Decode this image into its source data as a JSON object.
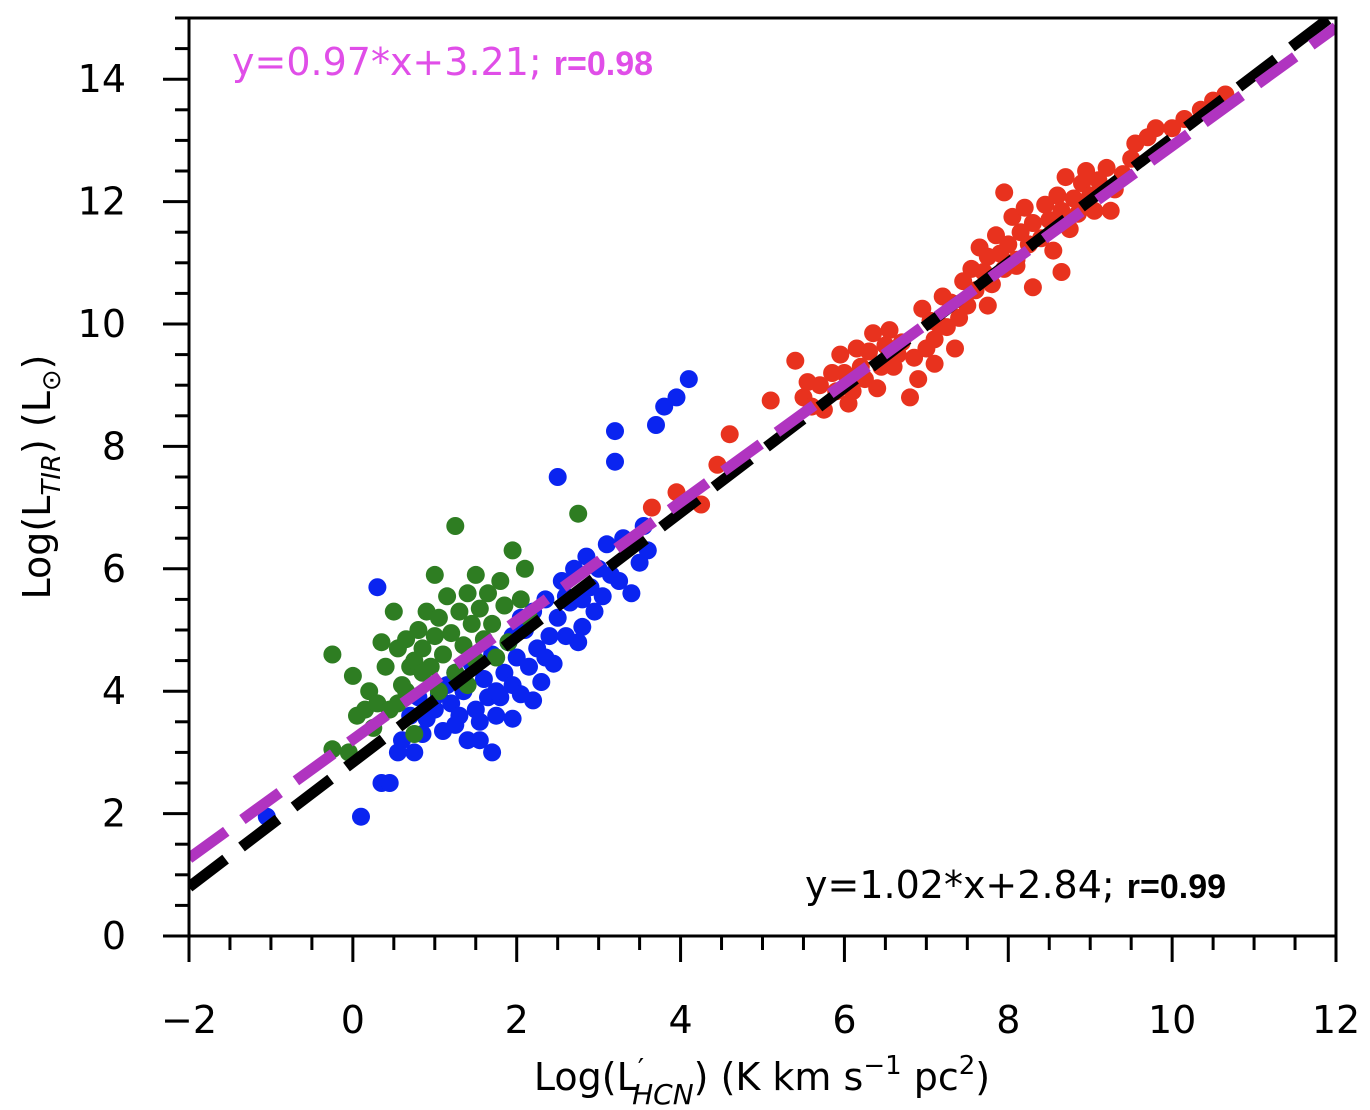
{
  "chart_data": {
    "type": "scatter",
    "xlabel": "Log(L′HCN) (K km s⁻¹ pc²)",
    "xlabel_parts": {
      "pre": "Log(L",
      "prime": "′",
      "sub": "HCN",
      "post": ") (K km s",
      "sup1": "−1",
      "mid": " pc",
      "sup2": "2",
      "end": ")"
    },
    "ylabel": "Log(L TIR) (L⊙)",
    "ylabel_parts": {
      "pre": "Log(L",
      "sub": "TIR",
      "post": ") (L",
      "sun": "⊙",
      "end": ")"
    },
    "xlim": [
      -2,
      12
    ],
    "ylim": [
      0,
      15
    ],
    "xticks": [
      -2,
      0,
      2,
      4,
      6,
      8,
      10,
      12
    ],
    "xtick_labels": [
      "−2",
      "0",
      "2",
      "4",
      "6",
      "8",
      "10",
      "12"
    ],
    "yticks": [
      0,
      2,
      4,
      6,
      8,
      10,
      12,
      14
    ],
    "ytick_labels": [
      "0",
      "2",
      "4",
      "6",
      "8",
      "10",
      "12",
      "14"
    ],
    "x_minor_step": 0.5,
    "y_minor_step": 0.5,
    "fits": [
      {
        "name": "black-fit",
        "slope": 1.02,
        "intercept": 2.84,
        "color": "#000000",
        "label_eq": "y=1.02*x+2.84; ",
        "label_r": "r=0.99",
        "label_color": "#000000",
        "label_r_color": "#000000"
      },
      {
        "name": "magenta-fit",
        "slope": 0.97,
        "intercept": 3.21,
        "color": "#b034c0",
        "label_eq": "y=0.97*x+3.21; ",
        "label_r": "r=0.98",
        "label_color": "#e04ee8",
        "label_r_color": "#e04ee8"
      }
    ],
    "series": [
      {
        "name": "red",
        "color": "#e8321e",
        "points": [
          [
            3.65,
            7.0
          ],
          [
            3.95,
            7.25
          ],
          [
            4.25,
            7.05
          ],
          [
            4.45,
            7.7
          ],
          [
            4.6,
            8.2
          ],
          [
            5.1,
            8.75
          ],
          [
            5.4,
            9.4
          ],
          [
            5.5,
            8.8
          ],
          [
            5.55,
            9.05
          ],
          [
            5.6,
            8.65
          ],
          [
            5.7,
            9.0
          ],
          [
            5.75,
            8.6
          ],
          [
            5.85,
            9.2
          ],
          [
            5.9,
            8.9
          ],
          [
            5.95,
            9.5
          ],
          [
            6.0,
            9.2
          ],
          [
            6.05,
            8.7
          ],
          [
            6.1,
            8.9
          ],
          [
            6.15,
            9.6
          ],
          [
            6.2,
            9.3
          ],
          [
            6.25,
            9.1
          ],
          [
            6.3,
            9.55
          ],
          [
            6.35,
            9.85
          ],
          [
            6.4,
            8.95
          ],
          [
            6.45,
            9.3
          ],
          [
            6.5,
            9.65
          ],
          [
            6.55,
            9.9
          ],
          [
            6.6,
            9.3
          ],
          [
            6.7,
            9.7
          ],
          [
            6.8,
            8.8
          ],
          [
            6.85,
            9.45
          ],
          [
            6.9,
            9.1
          ],
          [
            7.0,
            9.6
          ],
          [
            7.05,
            10.05
          ],
          [
            7.1,
            9.75
          ],
          [
            7.2,
            10.45
          ],
          [
            7.25,
            9.95
          ],
          [
            7.3,
            10.35
          ],
          [
            7.35,
            9.6
          ],
          [
            7.4,
            10.1
          ],
          [
            7.45,
            10.7
          ],
          [
            7.5,
            10.3
          ],
          [
            7.55,
            10.9
          ],
          [
            7.6,
            10.55
          ],
          [
            7.65,
            11.25
          ],
          [
            7.7,
            10.85
          ],
          [
            7.75,
            11.1
          ],
          [
            7.8,
            10.65
          ],
          [
            7.85,
            11.45
          ],
          [
            7.9,
            11.15
          ],
          [
            7.95,
            10.9
          ],
          [
            8.0,
            11.3
          ],
          [
            8.05,
            11.75
          ],
          [
            8.1,
            11.05
          ],
          [
            8.15,
            11.5
          ],
          [
            8.2,
            11.9
          ],
          [
            8.25,
            11.3
          ],
          [
            8.3,
            11.65
          ],
          [
            8.4,
            11.4
          ],
          [
            8.45,
            11.95
          ],
          [
            8.5,
            11.7
          ],
          [
            8.55,
            11.2
          ],
          [
            8.6,
            12.1
          ],
          [
            8.65,
            11.85
          ],
          [
            8.7,
            12.4
          ],
          [
            8.75,
            11.55
          ],
          [
            8.8,
            12.05
          ],
          [
            8.85,
            11.8
          ],
          [
            8.9,
            12.3
          ],
          [
            8.95,
            12.5
          ],
          [
            9.0,
            12.1
          ],
          [
            9.05,
            11.85
          ],
          [
            9.1,
            12.35
          ],
          [
            9.2,
            12.55
          ],
          [
            9.3,
            12.2
          ],
          [
            9.4,
            12.45
          ],
          [
            9.5,
            12.7
          ],
          [
            9.55,
            12.95
          ],
          [
            9.7,
            13.05
          ],
          [
            9.8,
            13.2
          ],
          [
            10.0,
            13.2
          ],
          [
            10.15,
            13.35
          ],
          [
            10.35,
            13.5
          ],
          [
            10.5,
            13.65
          ],
          [
            10.65,
            13.75
          ],
          [
            8.3,
            10.6
          ],
          [
            8.1,
            10.95
          ],
          [
            7.75,
            10.3
          ],
          [
            7.1,
            9.35
          ],
          [
            6.65,
            9.5
          ],
          [
            7.95,
            12.15
          ],
          [
            7.15,
            10.0
          ],
          [
            6.95,
            10.25
          ],
          [
            8.65,
            10.85
          ],
          [
            9.25,
            11.85
          ]
        ]
      },
      {
        "name": "blue",
        "color": "#0a24f0",
        "points": [
          [
            -1.05,
            1.95
          ],
          [
            0.1,
            1.95
          ],
          [
            0.3,
            5.7
          ],
          [
            0.35,
            2.5
          ],
          [
            0.45,
            2.5
          ],
          [
            0.55,
            3.0
          ],
          [
            0.6,
            3.2
          ],
          [
            0.7,
            3.6
          ],
          [
            0.75,
            3.0
          ],
          [
            0.8,
            3.9
          ],
          [
            0.85,
            3.3
          ],
          [
            0.9,
            3.55
          ],
          [
            1.0,
            3.7
          ],
          [
            1.05,
            3.95
          ],
          [
            1.1,
            3.35
          ],
          [
            1.15,
            4.1
          ],
          [
            1.2,
            3.8
          ],
          [
            1.25,
            4.3
          ],
          [
            1.3,
            3.6
          ],
          [
            1.35,
            4.0
          ],
          [
            1.4,
            3.2
          ],
          [
            1.45,
            4.45
          ],
          [
            1.5,
            3.7
          ],
          [
            1.55,
            3.2
          ],
          [
            1.6,
            4.2
          ],
          [
            1.65,
            3.9
          ],
          [
            1.7,
            3.0
          ],
          [
            1.7,
            4.6
          ],
          [
            1.75,
            3.6
          ],
          [
            1.8,
            3.9
          ],
          [
            1.85,
            4.3
          ],
          [
            1.9,
            4.8
          ],
          [
            1.95,
            4.1
          ],
          [
            1.95,
            3.55
          ],
          [
            2.0,
            4.55
          ],
          [
            2.05,
            3.95
          ],
          [
            2.1,
            5.0
          ],
          [
            2.15,
            4.4
          ],
          [
            2.2,
            5.3
          ],
          [
            2.25,
            4.7
          ],
          [
            2.3,
            4.15
          ],
          [
            2.35,
            5.5
          ],
          [
            2.4,
            4.9
          ],
          [
            2.45,
            4.45
          ],
          [
            2.5,
            5.2
          ],
          [
            2.5,
            7.5
          ],
          [
            2.55,
            5.8
          ],
          [
            2.6,
            4.9
          ],
          [
            2.65,
            5.45
          ],
          [
            2.7,
            6.0
          ],
          [
            2.75,
            4.8
          ],
          [
            2.8,
            5.5
          ],
          [
            2.85,
            6.2
          ],
          [
            2.9,
            5.7
          ],
          [
            2.95,
            5.3
          ],
          [
            3.0,
            6.0
          ],
          [
            3.05,
            5.55
          ],
          [
            3.1,
            6.4
          ],
          [
            3.15,
            5.9
          ],
          [
            3.2,
            8.25
          ],
          [
            3.2,
            7.75
          ],
          [
            3.25,
            5.8
          ],
          [
            3.3,
            6.5
          ],
          [
            3.4,
            5.6
          ],
          [
            3.5,
            6.1
          ],
          [
            3.55,
            6.7
          ],
          [
            3.6,
            6.3
          ],
          [
            3.7,
            8.35
          ],
          [
            3.8,
            8.65
          ],
          [
            3.95,
            8.8
          ],
          [
            4.1,
            9.1
          ],
          [
            1.55,
            3.5
          ],
          [
            1.75,
            4.0
          ],
          [
            2.05,
            5.2
          ],
          [
            2.35,
            4.55
          ],
          [
            2.6,
            5.55
          ],
          [
            1.25,
            3.45
          ],
          [
            1.95,
            4.9
          ],
          [
            2.2,
            3.85
          ],
          [
            2.8,
            5.05
          ]
        ]
      },
      {
        "name": "green",
        "color": "#2e7d22",
        "points": [
          [
            -0.25,
            4.6
          ],
          [
            -0.25,
            3.05
          ],
          [
            -0.05,
            3.0
          ],
          [
            0.0,
            4.25
          ],
          [
            0.05,
            3.6
          ],
          [
            0.15,
            3.7
          ],
          [
            0.2,
            4.0
          ],
          [
            0.25,
            3.4
          ],
          [
            0.3,
            3.8
          ],
          [
            0.35,
            4.8
          ],
          [
            0.4,
            4.4
          ],
          [
            0.45,
            3.7
          ],
          [
            0.5,
            5.3
          ],
          [
            0.55,
            4.7
          ],
          [
            0.6,
            4.1
          ],
          [
            0.65,
            4.85
          ],
          [
            0.7,
            4.4
          ],
          [
            0.75,
            3.3
          ],
          [
            0.75,
            4.5
          ],
          [
            0.8,
            5.0
          ],
          [
            0.85,
            4.7
          ],
          [
            0.9,
            5.3
          ],
          [
            0.95,
            4.4
          ],
          [
            1.0,
            5.9
          ],
          [
            1.0,
            4.9
          ],
          [
            1.05,
            4.0
          ],
          [
            1.1,
            4.6
          ],
          [
            1.15,
            5.55
          ],
          [
            1.2,
            4.95
          ],
          [
            1.25,
            6.7
          ],
          [
            1.25,
            4.3
          ],
          [
            1.3,
            5.3
          ],
          [
            1.35,
            4.75
          ],
          [
            1.4,
            5.6
          ],
          [
            1.45,
            5.1
          ],
          [
            1.5,
            5.9
          ],
          [
            1.5,
            4.5
          ],
          [
            1.55,
            5.35
          ],
          [
            1.6,
            4.85
          ],
          [
            1.65,
            5.6
          ],
          [
            1.7,
            5.1
          ],
          [
            1.75,
            4.55
          ],
          [
            1.8,
            5.8
          ],
          [
            1.85,
            5.4
          ],
          [
            1.9,
            4.8
          ],
          [
            1.95,
            6.3
          ],
          [
            2.05,
            5.5
          ],
          [
            2.1,
            6.0
          ],
          [
            2.15,
            5.2
          ],
          [
            2.75,
            6.9
          ],
          [
            0.55,
            3.8
          ],
          [
            0.85,
            4.3
          ],
          [
            1.05,
            5.2
          ],
          [
            1.4,
            4.1
          ],
          [
            0.65,
            4.0
          ]
        ]
      }
    ]
  }
}
